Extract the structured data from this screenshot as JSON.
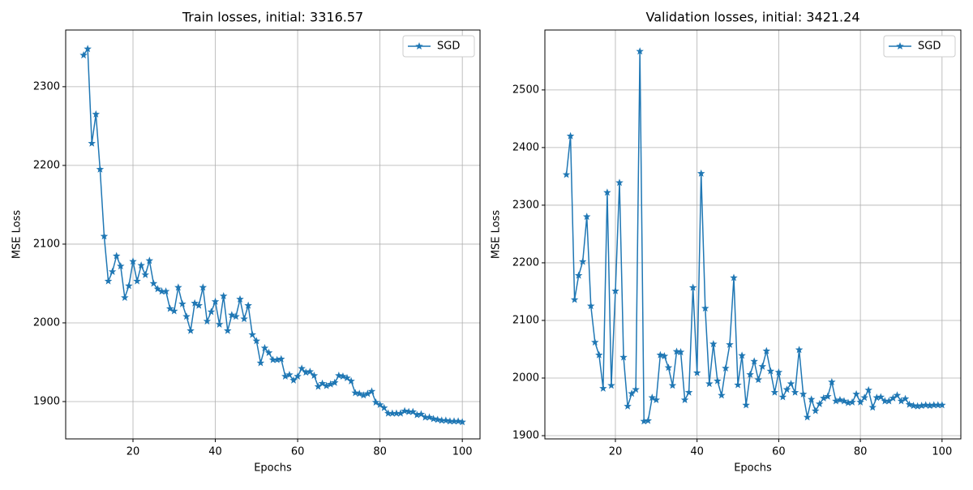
{
  "chart_data": [
    {
      "type": "line",
      "title": "Train losses, initial: 3316.57",
      "xlabel": "Epochs",
      "ylabel": "MSE Loss",
      "x": [
        8,
        9,
        10,
        11,
        12,
        13,
        14,
        15,
        16,
        17,
        18,
        19,
        20,
        21,
        22,
        23,
        24,
        25,
        26,
        27,
        28,
        29,
        30,
        31,
        32,
        33,
        34,
        35,
        36,
        37,
        38,
        39,
        40,
        41,
        42,
        43,
        44,
        45,
        46,
        47,
        48,
        49,
        50,
        51,
        52,
        53,
        54,
        55,
        56,
        57,
        58,
        59,
        60,
        61,
        62,
        63,
        64,
        65,
        66,
        67,
        68,
        69,
        70,
        71,
        72,
        73,
        74,
        75,
        76,
        77,
        78,
        79,
        80,
        81,
        82,
        83,
        84,
        85,
        86,
        87,
        88,
        89,
        90,
        91,
        92,
        93,
        94,
        95,
        96,
        97,
        98,
        99,
        100
      ],
      "series": [
        {
          "name": "SGD",
          "color": "#1f77b4",
          "marker": "*",
          "values": [
            2340,
            2348,
            2228,
            2265,
            2195,
            2110,
            2053,
            2065,
            2085,
            2072,
            2032,
            2047,
            2078,
            2053,
            2073,
            2061,
            2079,
            2050,
            2043,
            2040,
            2040,
            2018,
            2015,
            2045,
            2024,
            2008,
            1990,
            2025,
            2022,
            2045,
            2002,
            2014,
            2027,
            1998,
            2034,
            1990,
            2010,
            2008,
            2030,
            2005,
            2022,
            1985,
            1977,
            1949,
            1968,
            1962,
            1953,
            1953,
            1954,
            1932,
            1934,
            1927,
            1932,
            1942,
            1937,
            1938,
            1933,
            1919,
            1923,
            1920,
            1922,
            1924,
            1933,
            1932,
            1930,
            1926,
            1911,
            1910,
            1908,
            1910,
            1913,
            1899,
            1896,
            1892,
            1885,
            1885,
            1885,
            1885,
            1888,
            1887,
            1887,
            1883,
            1884,
            1880,
            1880,
            1878,
            1877,
            1876,
            1876,
            1875,
            1875,
            1875,
            1874
          ]
        }
      ],
      "xlim": [
        3.65,
        104.3
      ],
      "ylim": [
        1852.6,
        2372
      ],
      "xticks": [
        20,
        40,
        60,
        80,
        100
      ],
      "yticks": [
        1900,
        2000,
        2100,
        2200,
        2300
      ],
      "grid": true,
      "legend": "upper right"
    },
    {
      "type": "line",
      "title": "Validation losses, initial: 3421.24",
      "xlabel": "Epochs",
      "ylabel": "MSE Loss",
      "x": [
        8,
        9,
        10,
        11,
        12,
        13,
        14,
        15,
        16,
        17,
        18,
        19,
        20,
        21,
        22,
        23,
        24,
        25,
        26,
        27,
        28,
        29,
        30,
        31,
        32,
        33,
        34,
        35,
        36,
        37,
        38,
        39,
        40,
        41,
        42,
        43,
        44,
        45,
        46,
        47,
        48,
        49,
        50,
        51,
        52,
        53,
        54,
        55,
        56,
        57,
        58,
        59,
        60,
        61,
        62,
        63,
        64,
        65,
        66,
        67,
        68,
        69,
        70,
        71,
        72,
        73,
        74,
        75,
        76,
        77,
        78,
        79,
        80,
        81,
        82,
        83,
        84,
        85,
        86,
        87,
        88,
        89,
        90,
        91,
        92,
        93,
        94,
        95,
        96,
        97,
        98,
        99,
        100
      ],
      "series": [
        {
          "name": "SGD",
          "color": "#1f77b4",
          "marker": "*",
          "values": [
            2353,
            2420,
            2136,
            2178,
            2202,
            2280,
            2125,
            2062,
            2040,
            1982,
            2322,
            1987,
            2151,
            2339,
            2036,
            1951,
            1973,
            1980,
            2567,
            1925,
            1926,
            1966,
            1962,
            2040,
            2038,
            2018,
            1987,
            2046,
            2045,
            1962,
            1975,
            2157,
            2009,
            2355,
            2121,
            1990,
            2059,
            1995,
            1970,
            2017,
            2058,
            2174,
            1988,
            2039,
            1953,
            2006,
            2029,
            1997,
            2020,
            2047,
            2012,
            1975,
            2010,
            1967,
            1980,
            1990,
            1975,
            2049,
            1972,
            1932,
            1963,
            1943,
            1955,
            1965,
            1968,
            1993,
            1960,
            1962,
            1960,
            1957,
            1958,
            1972,
            1958,
            1966,
            1979,
            1949,
            1966,
            1967,
            1960,
            1960,
            1965,
            1970,
            1960,
            1964,
            1954,
            1952,
            1951,
            1952,
            1953,
            1952,
            1953,
            1953,
            1953
          ]
        }
      ],
      "xlim": [
        2.73,
        104.6
      ],
      "ylim": [
        1894.4,
        2604
      ],
      "xticks": [
        20,
        40,
        60,
        80,
        100
      ],
      "yticks": [
        1900,
        2000,
        2100,
        2200,
        2300,
        2400,
        2500
      ],
      "grid": true,
      "legend": "upper right"
    }
  ]
}
